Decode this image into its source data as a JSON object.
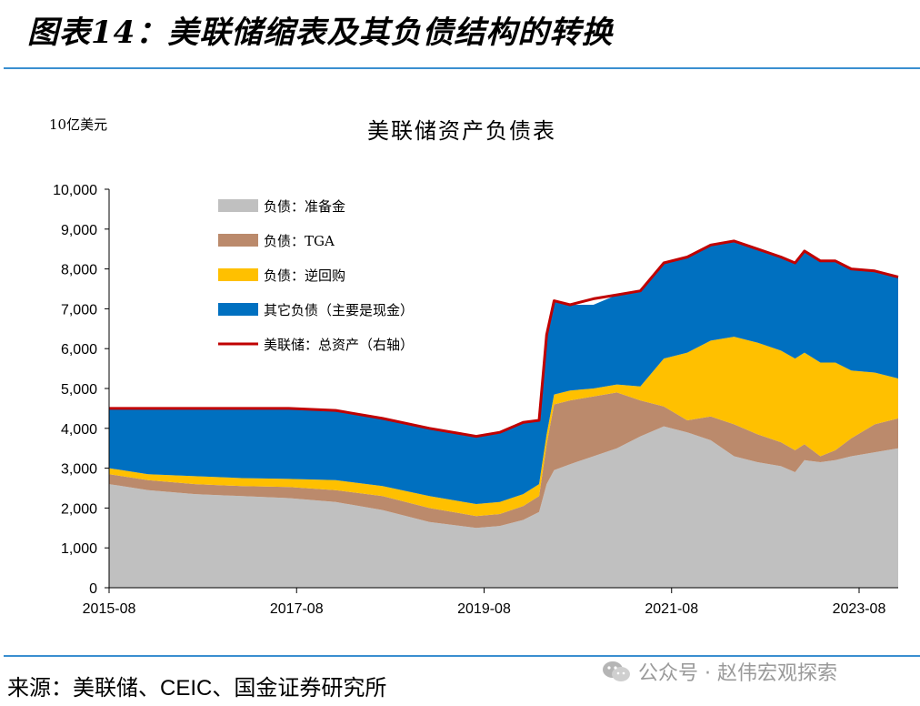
{
  "header": {
    "title": "图表14：美联储缩表及其负债结构的转换"
  },
  "footer": {
    "source": "来源：美联储、CEIC、国金证券研究所",
    "watermark": "公众号 · 赵伟宏观探索",
    "watermark_icon": "wechat-icon"
  },
  "colors": {
    "reserves": "#c0c0c0",
    "tga": "#bb8a6c",
    "reverse_repo": "#ffc000",
    "other": "#0070c0",
    "total_assets": "#c00000",
    "rule": "#3a8fd0"
  },
  "chart_data": {
    "type": "area",
    "title": "美联储资产负债表",
    "unit": "10亿美元",
    "ylim": [
      0,
      10000
    ],
    "yticks": [
      0,
      1000,
      2000,
      3000,
      4000,
      5000,
      6000,
      7000,
      8000,
      9000,
      10000
    ],
    "ytick_labels": [
      "0",
      "1,000",
      "2,000",
      "3,000",
      "4,000",
      "5,000",
      "6,000",
      "7,000",
      "8,000",
      "9,000",
      "10,000"
    ],
    "xlim": [
      2015.583,
      2024.0
    ],
    "xticks": [
      2015.583,
      2017.583,
      2019.583,
      2021.583,
      2023.583
    ],
    "xtick_labels": [
      "2015-08",
      "2017-08",
      "2019-08",
      "2021-08",
      "2023-08"
    ],
    "grid": false,
    "legend_position": "top-left",
    "x": [
      2015.583,
      2016.0,
      2016.5,
      2017.0,
      2017.5,
      2018.0,
      2018.5,
      2019.0,
      2019.5,
      2019.75,
      2020.0,
      2020.17,
      2020.25,
      2020.33,
      2020.5,
      2020.75,
      2021.0,
      2021.25,
      2021.5,
      2021.75,
      2022.0,
      2022.25,
      2022.5,
      2022.75,
      2022.9,
      2023.0,
      2023.17,
      2023.33,
      2023.5,
      2023.75,
      2024.0
    ],
    "series": [
      {
        "name": "负债：准备金",
        "key": "reserves",
        "kind": "stack",
        "values": [
          2600,
          2450,
          2350,
          2300,
          2250,
          2150,
          1950,
          1650,
          1500,
          1550,
          1700,
          1900,
          2600,
          2950,
          3100,
          3300,
          3500,
          3800,
          4050,
          3900,
          3700,
          3300,
          3150,
          3050,
          2900,
          3200,
          3150,
          3200,
          3300,
          3400,
          3500
        ]
      },
      {
        "name": "负债：TGA",
        "key": "tga",
        "kind": "stack",
        "values": [
          250,
          250,
          250,
          250,
          280,
          300,
          350,
          350,
          300,
          300,
          350,
          400,
          1000,
          1650,
          1600,
          1500,
          1400,
          900,
          500,
          300,
          600,
          800,
          700,
          600,
          550,
          400,
          150,
          250,
          450,
          700,
          750
        ]
      },
      {
        "name": "负债：逆回购",
        "key": "reverse_repo",
        "kind": "stack",
        "values": [
          150,
          150,
          200,
          200,
          200,
          250,
          250,
          300,
          300,
          300,
          300,
          300,
          250,
          250,
          250,
          200,
          200,
          350,
          1200,
          1700,
          1900,
          2200,
          2300,
          2300,
          2300,
          2300,
          2350,
          2200,
          1700,
          1300,
          1000
        ]
      },
      {
        "name": "其它负债（主要是现金）",
        "key": "other",
        "kind": "stack",
        "values": [
          1500,
          1650,
          1700,
          1750,
          1770,
          1750,
          1700,
          1700,
          1700,
          1750,
          1800,
          1600,
          2500,
          2350,
          2150,
          2100,
          2250,
          2400,
          2400,
          2400,
          2400,
          2400,
          2350,
          2350,
          2400,
          2550,
          2550,
          2550,
          2550,
          2550,
          2550
        ]
      },
      {
        "name": "美联储：总资产（右轴）",
        "key": "total_assets",
        "kind": "line",
        "values": [
          4500,
          4500,
          4500,
          4500,
          4500,
          4450,
          4250,
          4000,
          3800,
          3900,
          4150,
          4200,
          6350,
          7200,
          7100,
          7250,
          7350,
          7450,
          8150,
          8300,
          8600,
          8700,
          8500,
          8300,
          8150,
          8450,
          8200,
          8200,
          8000,
          7950,
          7800
        ]
      }
    ]
  }
}
